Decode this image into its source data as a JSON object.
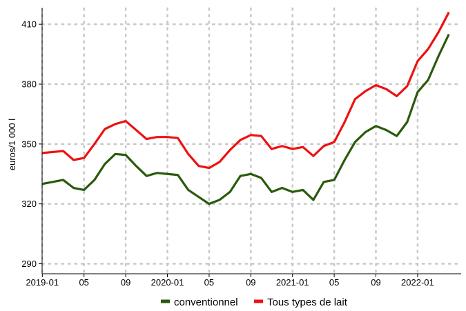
{
  "chart_data": {
    "type": "line",
    "title": "",
    "xlabel": "",
    "ylabel": "euros/1 000 l",
    "ylim": [
      285,
      418
    ],
    "yticks": [
      290,
      320,
      350,
      380,
      410
    ],
    "grid": true,
    "legend_position": "bottom",
    "x": [
      "2019-01",
      "2019-02",
      "2019-03",
      "2019-04",
      "2019-05",
      "2019-06",
      "2019-07",
      "2019-08",
      "2019-09",
      "2019-10",
      "2019-11",
      "2019-12",
      "2020-01",
      "2020-02",
      "2020-03",
      "2020-04",
      "2020-05",
      "2020-06",
      "2020-07",
      "2020-08",
      "2020-09",
      "2020-10",
      "2020-11",
      "2020-12",
      "2021-01",
      "2021-02",
      "2021-03",
      "2021-04",
      "2021-05",
      "2021-06",
      "2021-07",
      "2021-08",
      "2021-09",
      "2021-10",
      "2021-11",
      "2021-12",
      "2022-01",
      "2022-02",
      "2022-03",
      "2022-04"
    ],
    "xtick_labels": [
      {
        "x": "2019-01",
        "label": "2019-01"
      },
      {
        "x": "2019-05",
        "label": "05"
      },
      {
        "x": "2019-09",
        "label": "09"
      },
      {
        "x": "2020-01",
        "label": "2020-01"
      },
      {
        "x": "2020-05",
        "label": "05"
      },
      {
        "x": "2020-09",
        "label": "09"
      },
      {
        "x": "2021-01",
        "label": "2021-01"
      },
      {
        "x": "2021-05",
        "label": "05"
      },
      {
        "x": "2021-09",
        "label": "09"
      },
      {
        "x": "2022-01",
        "label": "2022-01"
      }
    ],
    "series": [
      {
        "name": "conventionnel",
        "color": "#2a5a0c",
        "values": [
          330,
          331,
          332,
          328,
          327,
          332,
          340,
          345,
          344.5,
          339,
          334,
          335.5,
          335,
          334.5,
          327,
          323.5,
          320,
          322,
          326,
          334,
          335,
          333,
          326,
          328,
          326,
          327,
          322,
          331,
          332,
          342,
          351,
          356,
          359,
          357,
          354,
          361,
          376,
          382,
          394,
          405
        ]
      },
      {
        "name": "Tous types de lait",
        "color": "#ee1111",
        "values": [
          345.5,
          346,
          346.5,
          342,
          343,
          350,
          357.5,
          360,
          361.5,
          357,
          352.5,
          353.5,
          353.5,
          353,
          345,
          339,
          338,
          341,
          347,
          352,
          354.5,
          354,
          347.5,
          349,
          347.5,
          348.5,
          344,
          349,
          351,
          361,
          372.5,
          376.5,
          379.5,
          377.5,
          374,
          379,
          391.5,
          397.5,
          406,
          416
        ]
      }
    ]
  }
}
